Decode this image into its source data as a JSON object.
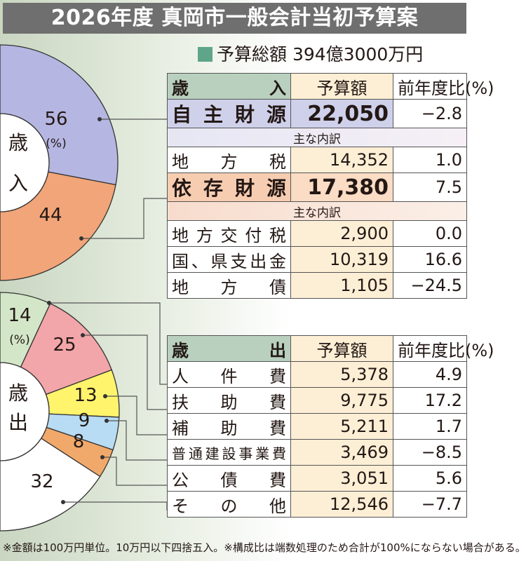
{
  "title": "2026年度 真岡市一般会計当初予算案",
  "total_label": "予算総額 394億3000万円",
  "footnote": "※金額は100万円単位。10万円以下四捨五入。※構成比は端数処理のため合計が100%にならない場合がある。",
  "colors": {
    "title_bg": "#6f6f6f",
    "header_green": "#b9d0be",
    "amount_bg": "#fcefd5",
    "jishu": "#cfd0ea",
    "izon": "#f7cdb1"
  },
  "chart_data": [
    {
      "type": "pie",
      "center_label": "歳入",
      "unit_label": "(%)",
      "slices": [
        {
          "value": 56,
          "color": "#b6b6e2",
          "label": "56"
        },
        {
          "value": 44,
          "color": "#f1a578",
          "label": "44"
        }
      ]
    },
    {
      "type": "pie",
      "center_label": "歳出",
      "unit_label": "(%)",
      "slices": [
        {
          "value": 14,
          "color": "#d3e6c8",
          "label": "14"
        },
        {
          "value": 25,
          "color": "#f2a6a9",
          "label": "25"
        },
        {
          "value": 13,
          "color": "#fff46c",
          "label": "13"
        },
        {
          "value": 9,
          "color": "#b7dcf4",
          "label": "9"
        },
        {
          "value": 8,
          "color": "#f1a96b",
          "label": "8"
        },
        {
          "value": 32,
          "color": "#ffffff",
          "label": "32"
        }
      ]
    }
  ],
  "revenue_table": {
    "header": {
      "name": "歳入",
      "amount": "予算額",
      "ratio": "前年度比(%)"
    },
    "jishu": {
      "name": "自主財源",
      "amount": "22,050",
      "ratio": "−2.8"
    },
    "sub_label_1": "主な内訳",
    "chihouzei": {
      "name": "地方税",
      "amount": "14,352",
      "ratio": "1.0"
    },
    "izon": {
      "name": "依存財源",
      "amount": "17,380",
      "ratio": "7.5"
    },
    "sub_label_2": "主な内訳",
    "items": [
      {
        "name": "地方交付税",
        "amount": "2,900",
        "ratio": "0.0"
      },
      {
        "name": "国、県支出金",
        "amount": "10,319",
        "ratio": "16.6"
      },
      {
        "name": "地方債",
        "amount": "1,105",
        "ratio": "−24.5"
      }
    ]
  },
  "expenditure_table": {
    "header": {
      "name": "歳出",
      "amount": "予算額",
      "ratio": "前年度比(%)"
    },
    "items": [
      {
        "name": "人件費",
        "amount": "5,378",
        "ratio": "4.9"
      },
      {
        "name": "扶助費",
        "amount": "9,775",
        "ratio": "17.2"
      },
      {
        "name": "補助費",
        "amount": "5,211",
        "ratio": "1.7"
      },
      {
        "name": "普通建設事業費",
        "amount": "3,469",
        "ratio": "−8.5"
      },
      {
        "name": "公債費",
        "amount": "3,051",
        "ratio": "5.6"
      },
      {
        "name": "その他",
        "amount": "12,546",
        "ratio": "−7.7"
      }
    ]
  }
}
